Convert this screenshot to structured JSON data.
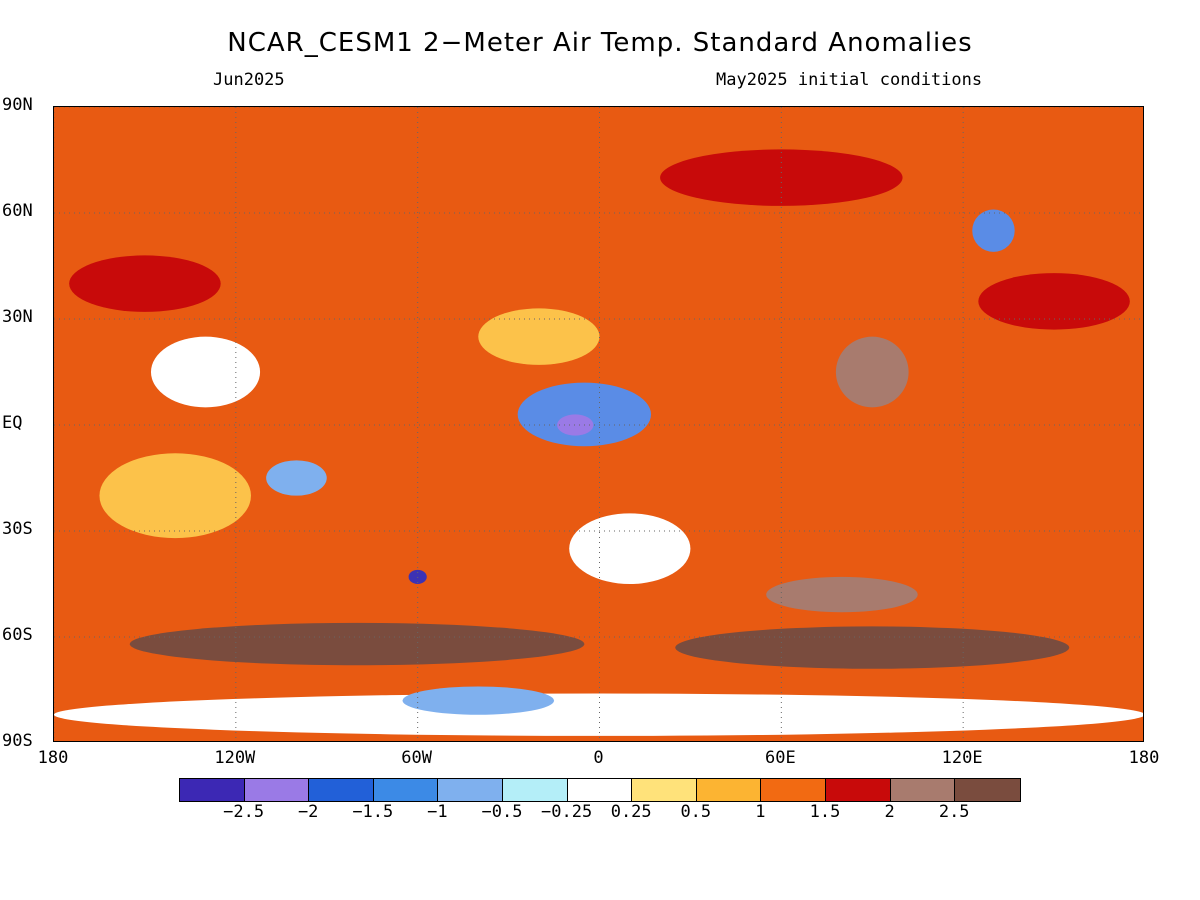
{
  "title": "NCAR_CESM1 2−Meter Air Temp. Standard Anomalies",
  "valid_month": "Jun2025",
  "init_conditions": "May2025 initial conditions",
  "map": {
    "projection": "equirectangular",
    "lon_range": [
      -180,
      180
    ],
    "lat_range": [
      -90,
      90
    ],
    "gridlines": "dotted",
    "lat_ticks": [
      {
        "value": 90,
        "label": "90N"
      },
      {
        "value": 60,
        "label": "60N"
      },
      {
        "value": 30,
        "label": "30N"
      },
      {
        "value": 0,
        "label": "EQ"
      },
      {
        "value": -30,
        "label": "30S"
      },
      {
        "value": -60,
        "label": "60S"
      },
      {
        "value": -90,
        "label": "90S"
      }
    ],
    "lon_ticks": [
      {
        "value": -180,
        "label": "180"
      },
      {
        "value": -120,
        "label": "120W"
      },
      {
        "value": -60,
        "label": "60W"
      },
      {
        "value": 0,
        "label": "0"
      },
      {
        "value": 60,
        "label": "60E"
      },
      {
        "value": 120,
        "label": "120E"
      },
      {
        "value": 180,
        "label": "180"
      }
    ],
    "background_level_color": "#e85a12",
    "anomaly_regions": [
      {
        "lon": -5,
        "lat": 3,
        "rlon": 22,
        "rlat": 9,
        "color": "#5a8ce6"
      },
      {
        "lon": -8,
        "lat": 0,
        "rlon": 6,
        "rlat": 3,
        "color": "#9a7ae6"
      },
      {
        "lon": -130,
        "lat": 15,
        "rlon": 18,
        "rlat": 10,
        "color": "#ffffff"
      },
      {
        "lon": -100,
        "lat": -15,
        "rlon": 10,
        "rlat": 5,
        "color": "#7fb0ee"
      },
      {
        "lon": -60,
        "lat": -43,
        "rlon": 3,
        "rlat": 2,
        "color": "#3c32b4"
      },
      {
        "lon": 10,
        "lat": -35,
        "rlon": 20,
        "rlat": 10,
        "color": "#ffffff"
      },
      {
        "lon": 0,
        "lat": -82,
        "rlon": 180,
        "rlat": 6,
        "color": "#ffffff"
      },
      {
        "lon": -40,
        "lat": -78,
        "rlon": 25,
        "rlat": 4,
        "color": "#7fb0ee"
      },
      {
        "lon": 130,
        "lat": 55,
        "rlon": 7,
        "rlat": 6,
        "color": "#5a8ce6"
      },
      {
        "lon": -80,
        "lat": -62,
        "rlon": 75,
        "rlat": 6,
        "color": "#7a4c3e"
      },
      {
        "lon": 90,
        "lat": -63,
        "rlon": 65,
        "rlat": 6,
        "color": "#7a4c3e"
      },
      {
        "lon": 80,
        "lat": -48,
        "rlon": 25,
        "rlat": 5,
        "color": "#a87b6e"
      },
      {
        "lon": 90,
        "lat": 15,
        "rlon": 12,
        "rlat": 10,
        "color": "#a87b6e"
      },
      {
        "lon": -140,
        "lat": -20,
        "rlon": 25,
        "rlat": 12,
        "color": "#fcc24a"
      },
      {
        "lon": 60,
        "lat": 70,
        "rlon": 40,
        "rlat": 8,
        "color": "#c80a0a"
      },
      {
        "lon": -20,
        "lat": 25,
        "rlon": 20,
        "rlat": 8,
        "color": "#fcc24a"
      },
      {
        "lon": 150,
        "lat": 35,
        "rlon": 25,
        "rlat": 8,
        "color": "#c80a0a"
      },
      {
        "lon": -150,
        "lat": 40,
        "rlon": 25,
        "rlat": 8,
        "color": "#c80a0a"
      }
    ]
  },
  "colorbar": {
    "colors": [
      "#3c28b4",
      "#9a7ae6",
      "#2260d8",
      "#3c8ae6",
      "#7fb0ee",
      "#b4eef8",
      "#ffffff",
      "#ffe27a",
      "#fcb432",
      "#f26a12",
      "#c80a0a",
      "#a87b6e",
      "#7a4c3e"
    ],
    "labels": [
      "−2.5",
      "−2",
      "−1.5",
      "−1",
      "−0.5",
      "−0.25",
      "0.25",
      "0.5",
      "1",
      "1.5",
      "2",
      "2.5"
    ]
  }
}
